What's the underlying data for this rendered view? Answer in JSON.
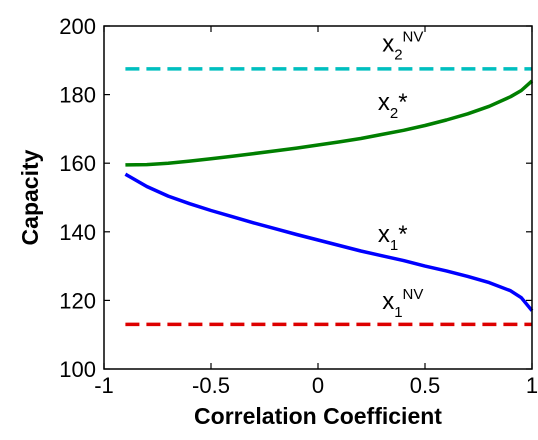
{
  "chart_data": {
    "type": "line",
    "title": "",
    "xlabel": "Correlation Coefficient",
    "ylabel": "Capacity",
    "xlim": [
      -1,
      1
    ],
    "ylim": [
      100,
      200
    ],
    "xticks": [
      -1,
      -0.5,
      0,
      0.5,
      1
    ],
    "xtick_labels": [
      "-1",
      "-0.5",
      "0",
      "0.5",
      "1"
    ],
    "yticks": [
      100,
      120,
      140,
      160,
      180,
      200
    ],
    "ytick_labels": [
      "100",
      "120",
      "140",
      "160",
      "180",
      "200"
    ],
    "grid": false,
    "legend": "none",
    "series": [
      {
        "id": "x2NV",
        "color": "#00bfbf",
        "dash": "dashed",
        "x": [
          -0.9,
          1.0
        ],
        "y": [
          187.5,
          187.5
        ]
      },
      {
        "id": "x2star",
        "color": "#007f00",
        "dash": "solid",
        "x": [
          -0.9,
          -0.8,
          -0.7,
          -0.6,
          -0.5,
          -0.4,
          -0.3,
          -0.2,
          -0.1,
          0.0,
          0.1,
          0.2,
          0.3,
          0.4,
          0.5,
          0.6,
          0.7,
          0.8,
          0.9,
          0.95,
          1.0
        ],
        "y": [
          159.5,
          159.6,
          160.0,
          160.6,
          161.3,
          162.0,
          162.8,
          163.6,
          164.4,
          165.3,
          166.2,
          167.2,
          168.4,
          169.6,
          171.0,
          172.6,
          174.4,
          176.6,
          179.4,
          181.2,
          184.0
        ]
      },
      {
        "id": "x1star",
        "color": "#0000ff",
        "dash": "solid",
        "x": [
          -0.9,
          -0.8,
          -0.7,
          -0.6,
          -0.5,
          -0.4,
          -0.3,
          -0.2,
          -0.1,
          0.0,
          0.1,
          0.2,
          0.3,
          0.4,
          0.5,
          0.6,
          0.7,
          0.8,
          0.9,
          0.95,
          1.0
        ],
        "y": [
          156.8,
          153.2,
          150.4,
          148.2,
          146.2,
          144.4,
          142.6,
          140.9,
          139.2,
          137.6,
          136.0,
          134.4,
          133.0,
          131.6,
          130.0,
          128.6,
          127.0,
          125.2,
          122.8,
          120.8,
          117.0
        ]
      },
      {
        "id": "x1NV",
        "color": "#dd0000",
        "dash": "dashed",
        "x": [
          -0.9,
          1.0
        ],
        "y": [
          113.0,
          113.0
        ]
      }
    ],
    "annotations": [
      {
        "id": "x2NV",
        "base": "x",
        "sub": "2",
        "sup": "NV",
        "x": 0.3,
        "y": 192.5
      },
      {
        "id": "x2star",
        "base": "x",
        "sub": "2",
        "sup": "*",
        "x": 0.28,
        "y": 175.5
      },
      {
        "id": "x1star",
        "base": "x",
        "sub": "1",
        "sup": "*",
        "x": 0.28,
        "y": 137.0
      },
      {
        "id": "x1NV",
        "base": "x",
        "sub": "1",
        "sup": "NV",
        "x": 0.3,
        "y": 117.5
      }
    ]
  }
}
